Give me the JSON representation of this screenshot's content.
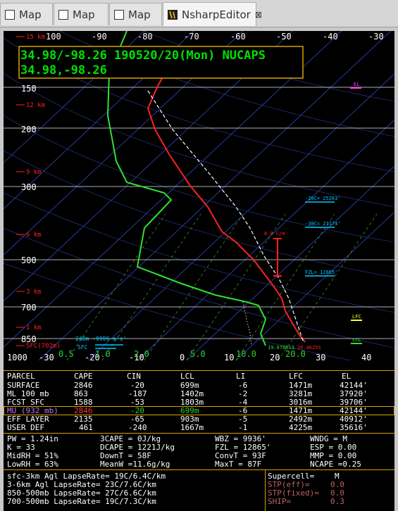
{
  "tabs": [
    {
      "label": "Map",
      "icon": "map-icon"
    },
    {
      "label": "Map",
      "icon": "map-icon"
    },
    {
      "label": "Map",
      "icon": "map-icon"
    },
    {
      "label": "NsharpEditor",
      "icon": "nsharp-icon",
      "close": "⊠"
    }
  ],
  "sounding": {
    "line1": "34.98/-98.26 190520/20(Mon) NUCAPS",
    "line2": "34.98,-98.26",
    "title_color": "#00e000"
  },
  "skewt": {
    "temp_labels": [
      "100",
      "-90",
      "-80",
      "-70",
      "-60",
      "-50",
      "-40",
      "-30"
    ],
    "bottom_temp_labels": [
      "-30",
      "-20",
      "-10",
      "0",
      "10",
      "20",
      "30",
      "40"
    ],
    "mixing_ratio_labels": [
      "0.5",
      "1.0",
      "2.0",
      "5.0",
      "10.0",
      "20.0"
    ],
    "pressure_labels": [
      "150",
      "200",
      "300",
      "500",
      "700",
      "850",
      "1000"
    ],
    "height_labels": [
      "15 km",
      "12 km",
      "9 km",
      "6 km",
      "3 km",
      "1 km",
      "SFC(702m)"
    ],
    "markers": {
      "el": "EL",
      "lfc": "LFC",
      "lcl": "LCL",
      "hgt_20c": "-20C= 25263'",
      "hgt_30c": "-30C= 21174'",
      "fzl": "FZL= 12865'",
      "dcape_lapse": "8.0 C/m",
      "sfc_temp": "19.670613",
      "sfc_dew": "26.4625S",
      "storm_motion": "240m -9999 m²s²",
      "sfc": "SFC"
    },
    "colors": {
      "temp": "#ff2020",
      "dew": "#30e030",
      "parcel": "#ffffff",
      "isobar": "#ffffff",
      "isotherm": "#4060ff",
      "mixing": "#40c040",
      "height": "#ff2020"
    }
  },
  "parcel_table": {
    "headers": [
      "PARCEL",
      "CAPE",
      "CIN",
      "LCL",
      "LI",
      "LFC",
      "EL"
    ],
    "rows": [
      [
        "SURFACE",
        "2846",
        "-20",
        "699m",
        "-6",
        "1471m",
        "42144'"
      ],
      [
        "ML 100 mb",
        "863",
        "-187",
        "1402m",
        "-2",
        "3281m",
        "37920'"
      ],
      [
        "FCST SFC",
        "1588",
        "-53",
        "1803m",
        "-4",
        "3016m",
        "39706'"
      ],
      [
        "MU (932 mb)",
        "2846",
        "-20",
        "699m",
        "-6",
        "1471m",
        "42144'"
      ],
      [
        "EFF LAYER",
        "2135",
        "-65",
        "903m",
        "-5",
        "2492m",
        "40912'"
      ],
      [
        "USER DEF",
        "461",
        "-240",
        "1667m",
        "-1",
        "4225m",
        "35616'"
      ]
    ]
  },
  "thermo": {
    "rows": [
      [
        "PW = 1.24in",
        "3CAPE = 0J/kg",
        "WBZ = 9936'",
        "WNDG =    M"
      ],
      [
        "K = 33",
        "DCAPE = 1221J/kg",
        "FZL = 12865'",
        "ESP = 0.00"
      ],
      [
        "MidRH = 51%",
        "DownT = 58F",
        "ConvT = 93F",
        "MMP = 0.00"
      ],
      [
        "LowRH = 63%",
        "MeanW =11.6g/kg",
        "MaxT = 87F",
        "NCAPE =0.25"
      ]
    ]
  },
  "lapse": {
    "rows": [
      "sfc-3km  Agl LapseRate= 19C/6.4C/km",
      "3-6km  Agl LapseRate=   23C/7.6C/km",
      "850-500mb LapseRate=   27C/6.6C/km",
      "700-500mb LapseRate=   19C/7.3C/km"
    ]
  },
  "severe": {
    "rows": [
      [
        "Supercell=",
        "M"
      ],
      [
        "STP(eff)=",
        "0.0"
      ],
      [
        "STP(fixed)=",
        "0.0"
      ],
      [
        "SHIP=",
        "0.3"
      ]
    ]
  }
}
